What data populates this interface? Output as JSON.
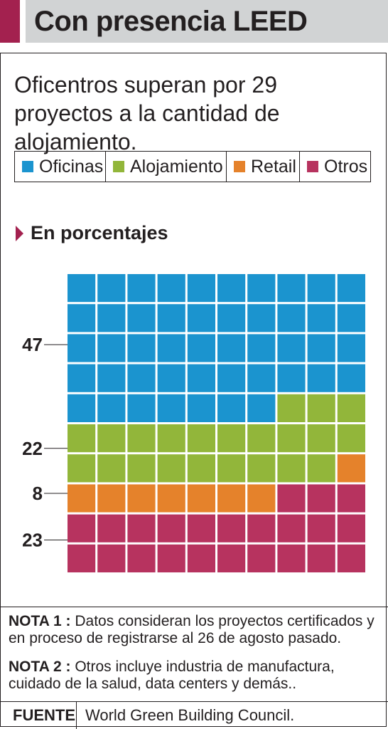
{
  "title": "Con presencia LEED",
  "subtitle": "Oficentros superan por 29 proyectos a la cantidad de alojamiento.",
  "section_label": "En porcentajes",
  "colors": {
    "accent": "#a3214f",
    "title_bg": "#d1d3d4"
  },
  "chart_data": {
    "type": "waffle",
    "unit": "%",
    "grid_rows": 10,
    "grid_cols": 10,
    "series": [
      {
        "name": "Oficinas",
        "value": 47,
        "color": "#1b94cf"
      },
      {
        "name": "Alojamiento",
        "value": 22,
        "color": "#92b63a"
      },
      {
        "name": "Retail",
        "value": 8,
        "color": "#e5822b"
      },
      {
        "name": "Otros",
        "value": 23,
        "color": "#b7335f"
      }
    ]
  },
  "notes": [
    {
      "label": "NOTA 1 :",
      "text": "Datos consideran los proyectos certificados y en proceso de registrarse al 26 de agosto pasado."
    },
    {
      "label": "NOTA 2 :",
      "text": "Otros incluye industria de manufactura, cuidado de la salud, data centers y demás.."
    }
  ],
  "source": {
    "label": "FUENTE",
    "value": "World Green Building Council."
  }
}
